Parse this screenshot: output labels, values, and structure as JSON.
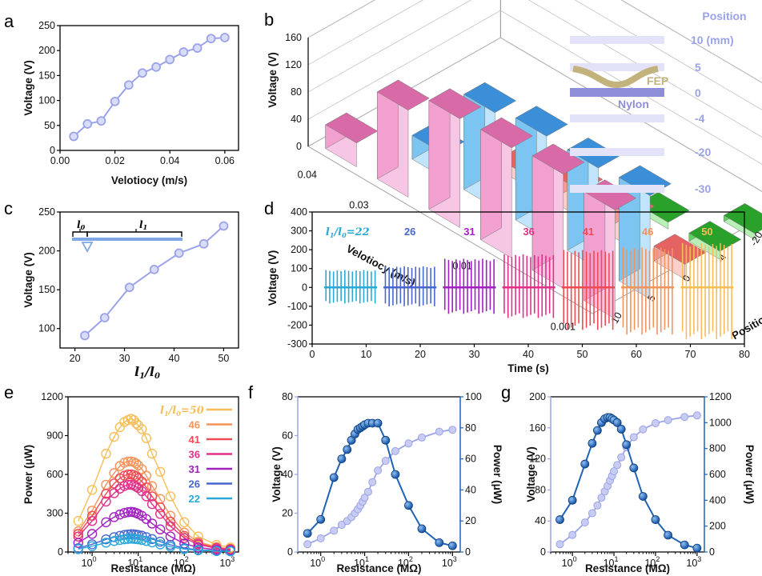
{
  "panel_letters": [
    "a",
    "b",
    "c",
    "d",
    "e",
    "f",
    "g"
  ],
  "colors": {
    "lavender": "#9aa3e8",
    "blue": "#1f63b5",
    "axis": "#000000",
    "pink": "#ec8fc8",
    "cyan_blue": "#5fb4ec",
    "red_pink": "#f07a7a",
    "green": "#3cbb3c",
    "nylon": "#8e8ed8",
    "fep": "#c2b27c",
    "band": "#e2e2f8",
    "ratio_colors": [
      "#2aa8d8",
      "#4866d0",
      "#a020c0",
      "#e0308a",
      "#ee4b52",
      "#f4945a",
      "#f5be58"
    ]
  },
  "schematic": {
    "header": "Position",
    "labels": [
      "10 (mm)",
      "5",
      "0",
      "-4",
      "-20",
      "-30"
    ],
    "nylon_label": "Nylon",
    "fep_label": "FEP"
  },
  "chart_data": [
    {
      "id": "a",
      "type": "line",
      "xlabel": "Velotiocy (m/s)",
      "ylabel": "Voltage (V)",
      "xlim": [
        0,
        0.065
      ],
      "ylim": [
        0,
        250
      ],
      "xticks": [
        0,
        0.02,
        0.04,
        0.06
      ],
      "xtick_labels": [
        "0.00",
        "0.02",
        "0.04",
        "0.06"
      ],
      "yticks": [
        0,
        50,
        100,
        150,
        200,
        250
      ],
      "x": [
        0.005,
        0.01,
        0.015,
        0.02,
        0.025,
        0.03,
        0.035,
        0.04,
        0.045,
        0.05,
        0.055,
        0.06
      ],
      "y": [
        28,
        53,
        59,
        98,
        131,
        155,
        167,
        182,
        197,
        205,
        224,
        226
      ]
    },
    {
      "id": "b",
      "type": "bar3d",
      "ylabel": "Voltage (V)",
      "zticks": [
        0,
        40,
        80,
        120,
        160
      ],
      "velocity_label": "Velotiocy (m/s)",
      "velocity_ticks": [
        "0.04",
        "0.03",
        "0.01",
        "0.001"
      ],
      "position_label": "Position (mm)",
      "position_ticks": [
        "-30",
        "-20",
        "-4",
        "0",
        "5",
        "10"
      ],
      "bars": [
        {
          "position": "10",
          "velocity": "0.04",
          "value": 35,
          "color": "pink"
        },
        {
          "position": "10",
          "velocity": "0.03",
          "value": 128,
          "color": "pink"
        },
        {
          "position": "10",
          "velocity": "0.02",
          "value": 160,
          "color": "pink"
        },
        {
          "position": "10",
          "velocity": "0.01",
          "value": 162,
          "color": "pink"
        },
        {
          "position": "10",
          "velocity": "0.005",
          "value": 168,
          "color": "pink"
        },
        {
          "position": "10",
          "velocity": "0.001",
          "value": 160,
          "color": "pink"
        },
        {
          "position": "5",
          "velocity": "0.03",
          "value": 35,
          "color": "cyan_blue"
        },
        {
          "position": "5",
          "velocity": "0.02",
          "value": 140,
          "color": "cyan_blue"
        },
        {
          "position": "5",
          "velocity": "0.01",
          "value": 150,
          "color": "cyan_blue"
        },
        {
          "position": "5",
          "velocity": "0.005",
          "value": 148,
          "color": "cyan_blue"
        },
        {
          "position": "5",
          "velocity": "0.001",
          "value": 152,
          "color": "cyan_blue"
        },
        {
          "position": "0",
          "velocity": "0.02",
          "value": 16,
          "color": "red_pink"
        },
        {
          "position": "0",
          "velocity": "0.01",
          "value": 40,
          "color": "red_pink"
        },
        {
          "position": "0",
          "velocity": "0.005",
          "value": 45,
          "color": "red_pink"
        },
        {
          "position": "0",
          "velocity": "0.001",
          "value": 22,
          "color": "red_pink"
        },
        {
          "position": "-4",
          "velocity": "0.005",
          "value": 10,
          "color": "green"
        },
        {
          "position": "-4",
          "velocity": "0.001",
          "value": 12,
          "color": "green"
        },
        {
          "position": "-20",
          "velocity": "0.001",
          "value": 9,
          "color": "green"
        }
      ]
    },
    {
      "id": "c",
      "type": "line",
      "xlabel": "l1/l0",
      "ylabel": "Voltage (V)",
      "xlim": [
        17,
        53
      ],
      "ylim": [
        75,
        250
      ],
      "xticks": [
        20,
        30,
        40,
        50
      ],
      "yticks": [
        100,
        150,
        200,
        250
      ],
      "x": [
        22,
        26,
        31,
        36,
        41,
        46,
        50
      ],
      "y": [
        91,
        114,
        153,
        176,
        197,
        209,
        232
      ],
      "inset_labels": [
        "l0",
        "l1"
      ]
    },
    {
      "id": "d",
      "type": "line",
      "xlabel": "Time (s)",
      "ylabel": "Voltage (V)",
      "xlim": [
        0,
        80
      ],
      "ylim": [
        -300,
        400
      ],
      "xticks": [
        0,
        10,
        20,
        30,
        40,
        50,
        60,
        70,
        80
      ],
      "yticks": [
        -300,
        -200,
        -100,
        0,
        100,
        200,
        300,
        400
      ],
      "series": [
        {
          "name": "l1/l0=22",
          "label": "l₁/l₀=22",
          "t_start": 2.2,
          "t_end": 12.0,
          "pos": 92,
          "neg": -85,
          "count": 14
        },
        {
          "name": "26",
          "label": "26",
          "t_start": 13.2,
          "t_end": 23.0,
          "pos": 112,
          "neg": -100,
          "count": 14
        },
        {
          "name": "31",
          "label": "31",
          "t_start": 24.2,
          "t_end": 34.0,
          "pos": 152,
          "neg": -140,
          "count": 14
        },
        {
          "name": "36",
          "label": "36",
          "t_start": 35.2,
          "t_end": 45.0,
          "pos": 175,
          "neg": -162,
          "count": 14
        },
        {
          "name": "41",
          "label": "41",
          "t_start": 46.2,
          "t_end": 56.0,
          "pos": 198,
          "neg": -225,
          "count": 14
        },
        {
          "name": "46",
          "label": "46",
          "t_start": 57.2,
          "t_end": 67.0,
          "pos": 212,
          "neg": -250,
          "count": 14
        },
        {
          "name": "50",
          "label": "50",
          "t_start": 68.2,
          "t_end": 78.0,
          "pos": 235,
          "neg": -275,
          "count": 14
        }
      ]
    },
    {
      "id": "e",
      "type": "scatter",
      "xlabel": "Resistance (MΩ)",
      "ylabel": "Power (μW)",
      "xscale": "log",
      "xlim": [
        0.3,
        1500
      ],
      "ylim": [
        0,
        1200
      ],
      "yticks": [
        0,
        300,
        600,
        900,
        1200
      ],
      "x": [
        0.5,
        1,
        2,
        3,
        4,
        5,
        6,
        7,
        8,
        9,
        10,
        12,
        15,
        20,
        30,
        50,
        100,
        200,
        500,
        1000
      ],
      "series": [
        {
          "name": "50",
          "label": "l₁/l₀=50",
          "values": [
            240,
            480,
            760,
            890,
            965,
            1005,
            1020,
            1030,
            1020,
            995,
            980,
            950,
            880,
            760,
            620,
            430,
            230,
            120,
            55,
            35
          ]
        },
        {
          "name": "46",
          "label": "46",
          "values": [
            160,
            320,
            520,
            610,
            665,
            690,
            700,
            700,
            695,
            685,
            670,
            640,
            590,
            510,
            410,
            280,
            150,
            80,
            38,
            25
          ]
        },
        {
          "name": "41",
          "label": "41",
          "values": [
            140,
            280,
            450,
            530,
            570,
            590,
            600,
            600,
            595,
            585,
            570,
            545,
            500,
            430,
            345,
            235,
            125,
            68,
            32,
            22
          ]
        },
        {
          "name": "36",
          "label": "36",
          "values": [
            120,
            240,
            390,
            455,
            490,
            510,
            520,
            520,
            515,
            505,
            495,
            470,
            430,
            370,
            295,
            200,
            108,
            58,
            28,
            19
          ]
        },
        {
          "name": "31",
          "label": "31",
          "values": [
            70,
            140,
            230,
            270,
            290,
            302,
            308,
            310,
            308,
            302,
            295,
            280,
            255,
            220,
            175,
            120,
            65,
            35,
            17,
            12
          ]
        },
        {
          "name": "26",
          "label": "26",
          "values": [
            30,
            60,
            98,
            115,
            125,
            132,
            136,
            138,
            137,
            135,
            132,
            126,
            115,
            100,
            80,
            55,
            30,
            17,
            9,
            7
          ]
        },
        {
          "name": "22",
          "label": "22",
          "values": [
            22,
            45,
            72,
            85,
            93,
            98,
            101,
            103,
            102,
            100,
            98,
            93,
            85,
            74,
            59,
            41,
            23,
            13,
            7,
            5
          ]
        }
      ]
    },
    {
      "id": "f",
      "type": "line",
      "xlabel": "Resistance (MΩ)",
      "ylabel": "Voltage (V)",
      "y2label": "Power (μW)",
      "xscale": "log",
      "xlim": [
        0.3,
        1500
      ],
      "ylim": [
        0,
        80
      ],
      "y2lim": [
        0,
        100
      ],
      "yticks": [
        0,
        20,
        40,
        60,
        80
      ],
      "y2ticks": [
        0,
        20,
        40,
        60,
        80,
        100
      ],
      "x": [
        0.5,
        1,
        2,
        3,
        4,
        5,
        6,
        7,
        8,
        9,
        10,
        12,
        15,
        20,
        30,
        50,
        100,
        200,
        500,
        1000
      ],
      "series": [
        {
          "name": "Voltage",
          "axis": "left",
          "values": [
            4,
            7,
            11,
            14,
            16,
            18,
            20,
            22,
            24,
            26,
            28,
            31,
            36,
            42,
            47,
            52,
            56,
            59,
            62,
            63
          ]
        },
        {
          "name": "Power",
          "axis": "right",
          "values": [
            12,
            21,
            48,
            60,
            66,
            72,
            76,
            79,
            80,
            81,
            82,
            83,
            83,
            83,
            72,
            50,
            30,
            15,
            6,
            4
          ]
        }
      ]
    },
    {
      "id": "g",
      "type": "line",
      "xlabel": "Resistance (MΩ)",
      "ylabel": "Voltage (V)",
      "y2label": "Power (μW)",
      "xscale": "log",
      "xlim": [
        0.3,
        1500
      ],
      "ylim": [
        0,
        200
      ],
      "y2lim": [
        0,
        1200
      ],
      "yticks": [
        0,
        40,
        80,
        120,
        160,
        200
      ],
      "y2ticks": [
        0,
        200,
        400,
        600,
        800,
        1000,
        1200
      ],
      "x": [
        0.5,
        1,
        2,
        3,
        4,
        5,
        6,
        7,
        8,
        9,
        10,
        12,
        15,
        20,
        30,
        50,
        100,
        200,
        500,
        1000
      ],
      "series": [
        {
          "name": "Voltage",
          "axis": "left",
          "values": [
            10,
            22,
            38,
            50,
            60,
            70,
            78,
            85,
            92,
            98,
            104,
            112,
            122,
            135,
            148,
            158,
            166,
            170,
            174,
            176
          ]
        },
        {
          "name": "Power",
          "axis": "right",
          "values": [
            250,
            400,
            680,
            840,
            940,
            1000,
            1030,
            1040,
            1040,
            1030,
            1020,
            1000,
            950,
            830,
            650,
            430,
            250,
            130,
            55,
            30
          ]
        }
      ]
    }
  ]
}
